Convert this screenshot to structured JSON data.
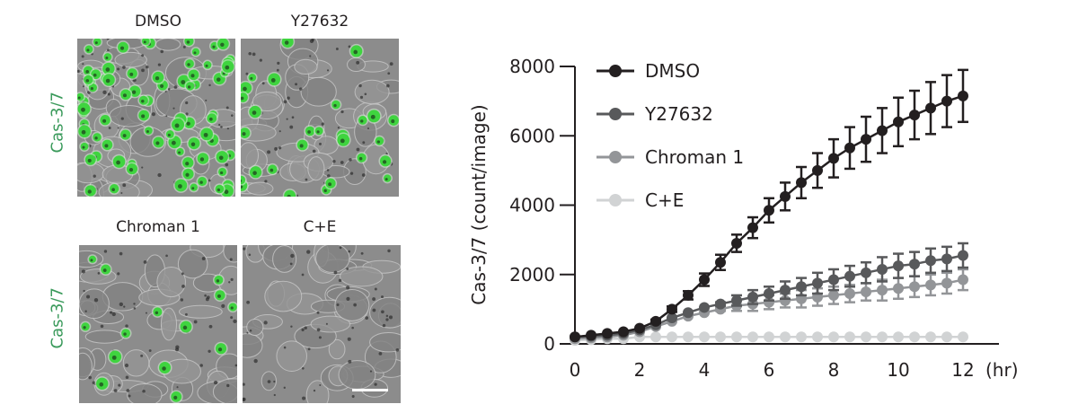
{
  "figure": {
    "images": {
      "row_label": "Cas-3/7",
      "row_label_color": "#3a9a5b",
      "panels": [
        {
          "label": "DMSO",
          "green_density": "high"
        },
        {
          "label": "Y27632",
          "green_density": "medium"
        },
        {
          "label": "Chroman 1",
          "green_density": "low"
        },
        {
          "label": "C+E",
          "green_density": "none"
        }
      ],
      "scale_bar": true
    }
  },
  "chart_data": {
    "type": "line",
    "title": "",
    "xlabel": "(hr)",
    "ylabel": "Cas-3/7 (count/image)",
    "xlim": [
      0,
      12
    ],
    "ylim": [
      0,
      8000
    ],
    "xticks": [
      0,
      2,
      4,
      6,
      8,
      10,
      12
    ],
    "yticks": [
      0,
      2000,
      4000,
      6000,
      8000
    ],
    "grid": false,
    "legend_position": "upper-left",
    "x": [
      0,
      0.5,
      1,
      1.5,
      2,
      2.5,
      3,
      3.5,
      4,
      4.5,
      5,
      5.5,
      6,
      6.5,
      7,
      7.5,
      8,
      8.5,
      9,
      9.5,
      10,
      10.5,
      11,
      11.5,
      12
    ],
    "series": [
      {
        "name": "DMSO",
        "color": "#231f20",
        "values": [
          200,
          250,
          300,
          350,
          450,
          650,
          1000,
          1400,
          1850,
          2350,
          2900,
          3350,
          3850,
          4250,
          4650,
          5000,
          5350,
          5650,
          5900,
          6150,
          6400,
          6600,
          6800,
          7000,
          7150
        ],
        "error": [
          0,
          0,
          0,
          0,
          0,
          50,
          80,
          120,
          180,
          220,
          250,
          300,
          350,
          400,
          450,
          500,
          550,
          600,
          650,
          650,
          700,
          700,
          750,
          750,
          750
        ]
      },
      {
        "name": "Y27632",
        "color": "#58595b",
        "values": [
          200,
          220,
          250,
          300,
          400,
          550,
          750,
          900,
          1050,
          1150,
          1250,
          1350,
          1450,
          1550,
          1650,
          1750,
          1850,
          1950,
          2050,
          2150,
          2250,
          2300,
          2400,
          2450,
          2550
        ],
        "error": [
          0,
          0,
          0,
          0,
          0,
          0,
          0,
          0,
          0,
          50,
          150,
          200,
          200,
          250,
          250,
          300,
          300,
          300,
          300,
          350,
          350,
          350,
          350,
          350,
          350
        ]
      },
      {
        "name": "Chroman 1",
        "color": "#939598",
        "values": [
          150,
          170,
          200,
          250,
          350,
          500,
          650,
          800,
          900,
          1000,
          1100,
          1150,
          1200,
          1250,
          1300,
          1350,
          1400,
          1450,
          1500,
          1550,
          1600,
          1650,
          1700,
          1750,
          1850
        ],
        "error": [
          0,
          0,
          0,
          0,
          0,
          0,
          0,
          0,
          0,
          50,
          150,
          200,
          200,
          200,
          250,
          250,
          250,
          250,
          250,
          300,
          300,
          300,
          300,
          300,
          300
        ]
      },
      {
        "name": "C+E",
        "color": "#d1d3d4",
        "values": [
          100,
          120,
          150,
          150,
          200,
          200,
          200,
          200,
          200,
          200,
          200,
          200,
          200,
          200,
          200,
          200,
          200,
          200,
          200,
          200,
          200,
          200,
          200,
          200,
          200
        ],
        "error": [
          0,
          0,
          0,
          0,
          0,
          0,
          0,
          0,
          0,
          0,
          0,
          0,
          0,
          0,
          0,
          0,
          0,
          0,
          0,
          0,
          0,
          0,
          0,
          0,
          0
        ]
      }
    ]
  }
}
